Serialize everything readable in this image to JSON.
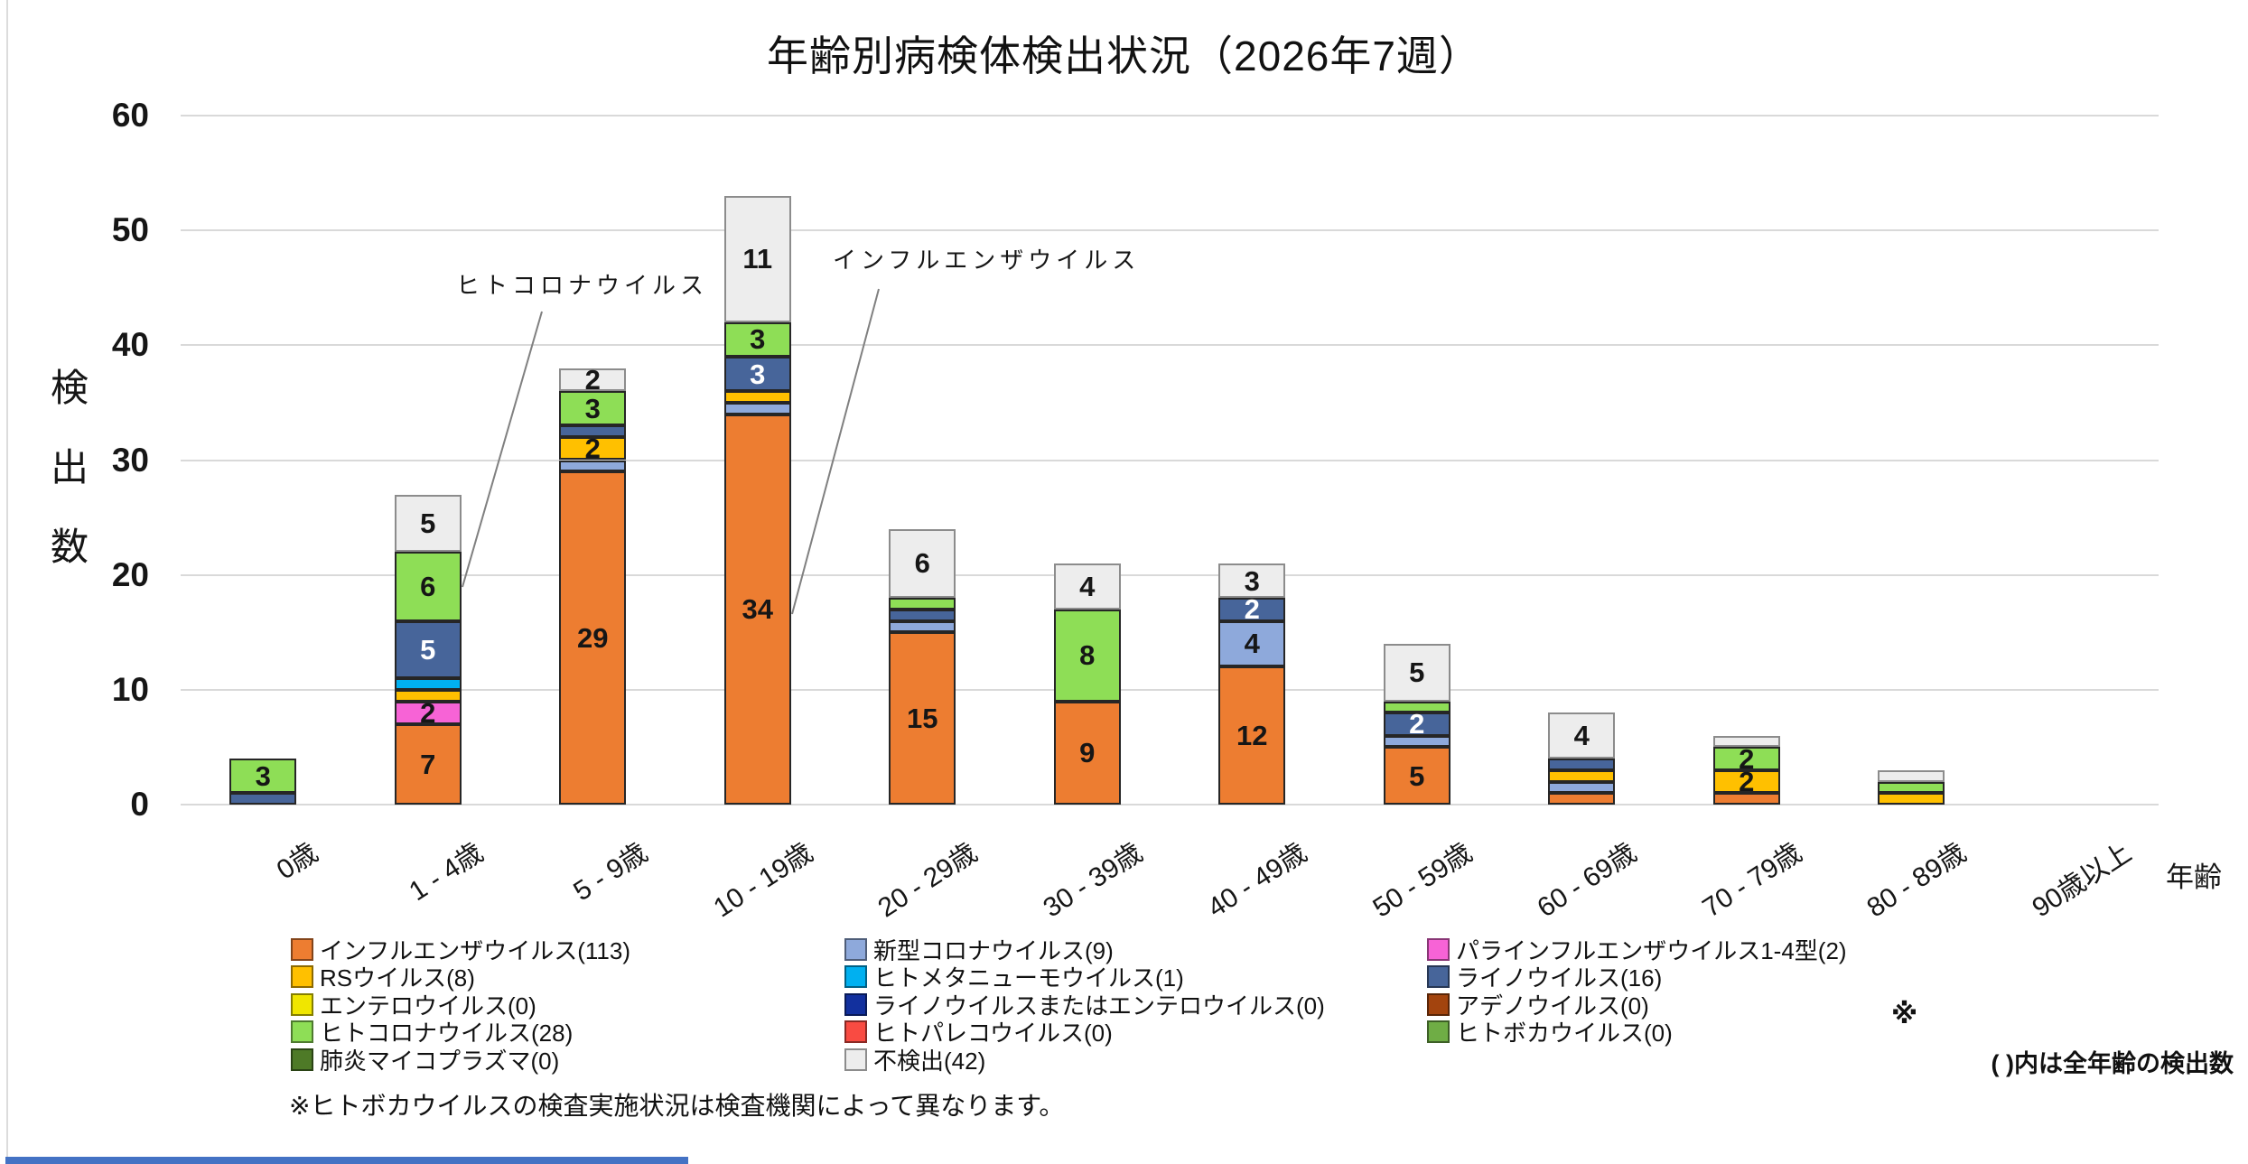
{
  "title": "年齢別病検体検出状況（2026年7週）",
  "chart_data": {
    "type": "bar",
    "stacked": true,
    "title": "年齢別病検体検出状況（2026年7週）",
    "ylabel": "検出数",
    "xlabel": "年齢",
    "ylim": [
      0,
      60
    ],
    "yticks": [
      0,
      10,
      20,
      30,
      40,
      50,
      60
    ],
    "grid": true,
    "grid_color": "#D9D9D9",
    "min_segment_label_value": 2,
    "categories": [
      "0歳",
      "1 - 4歳",
      "5 - 9歳",
      "10 - 19歳",
      "20 - 29歳",
      "30 - 39歳",
      "40 - 49歳",
      "50 - 59歳",
      "60 - 69歳",
      "70 - 79歳",
      "80 - 89歳",
      "90歳以上"
    ],
    "series": [
      {
        "name": "インフルエンザウイルス",
        "legend_label": "インフルエンザウイルス(113)",
        "total": 113,
        "color": "#ED7D31",
        "values": [
          0,
          7,
          29,
          34,
          15,
          9,
          12,
          5,
          1,
          1,
          0,
          0
        ]
      },
      {
        "name": "新型コロナウイルス",
        "legend_label": "新型コロナウイルス(9)",
        "total": 9,
        "color": "#8EA9DB",
        "values": [
          0,
          0,
          1,
          1,
          1,
          0,
          4,
          1,
          1,
          0,
          0,
          0
        ]
      },
      {
        "name": "パラインフルエンザウイルス1-4型",
        "legend_label": "パラインフルエンザウイルス1-4型(2)",
        "total": 2,
        "color": "#F763D6",
        "values": [
          0,
          2,
          0,
          0,
          0,
          0,
          0,
          0,
          0,
          0,
          0,
          0
        ]
      },
      {
        "name": "RSウイルス",
        "legend_label": "RSウイルス(8)",
        "total": 8,
        "color": "#FFC000",
        "values": [
          0,
          1,
          2,
          1,
          0,
          0,
          0,
          0,
          1,
          2,
          1,
          0
        ]
      },
      {
        "name": "ヒトメタニューモウイルス",
        "legend_label": "ヒトメタニューモウイルス(1)",
        "total": 1,
        "color": "#00B0F0",
        "values": [
          0,
          1,
          0,
          0,
          0,
          0,
          0,
          0,
          0,
          0,
          0,
          0
        ]
      },
      {
        "name": "ライノウイルス",
        "legend_label": "ライノウイルス(16)",
        "total": 16,
        "color": "#47659A",
        "text_color": "#FFFFFF",
        "values": [
          1,
          5,
          1,
          3,
          1,
          0,
          2,
          2,
          1,
          0,
          0,
          0
        ]
      },
      {
        "name": "エンテロウイルス",
        "legend_label": "エンテロウイルス(0)",
        "total": 0,
        "color": "#F0E600",
        "values": [
          0,
          0,
          0,
          0,
          0,
          0,
          0,
          0,
          0,
          0,
          0,
          0
        ]
      },
      {
        "name": "ライノウイルスまたはエンテロウイルス",
        "legend_label": "ライノウイルスまたはエンテロウイルス(0)",
        "total": 0,
        "color": "#12309E",
        "text_color": "#FFFFFF",
        "values": [
          0,
          0,
          0,
          0,
          0,
          0,
          0,
          0,
          0,
          0,
          0,
          0
        ]
      },
      {
        "name": "アデノウイルス",
        "legend_label": "アデノウイルス(0)",
        "total": 0,
        "color": "#A3440E",
        "values": [
          0,
          0,
          0,
          0,
          0,
          0,
          0,
          0,
          0,
          0,
          0,
          0
        ]
      },
      {
        "name": "ヒトコロナウイルス",
        "legend_label": "ヒトコロナウイルス(28)",
        "total": 28,
        "color": "#8EDE56",
        "values": [
          3,
          6,
          3,
          3,
          1,
          8,
          0,
          1,
          0,
          2,
          1,
          0
        ]
      },
      {
        "name": "ヒトパレコウイルス",
        "legend_label": "ヒトパレコウイルス(0)",
        "total": 0,
        "color": "#F94B42",
        "values": [
          0,
          0,
          0,
          0,
          0,
          0,
          0,
          0,
          0,
          0,
          0,
          0
        ]
      },
      {
        "name": "ヒトボカウイルス",
        "legend_label": "ヒトボカウイルス(0)",
        "total": 0,
        "color": "#6FAD45",
        "suffix_mark": "※",
        "values": [
          0,
          0,
          0,
          0,
          0,
          0,
          0,
          0,
          0,
          0,
          0,
          0
        ]
      },
      {
        "name": "肺炎マイコプラズマ",
        "legend_label": "肺炎マイコプラズマ(0)",
        "total": 0,
        "color": "#4E7A27",
        "values": [
          0,
          0,
          0,
          0,
          0,
          0,
          0,
          0,
          0,
          0,
          0,
          0
        ]
      },
      {
        "name": "不検出",
        "legend_label": "不検出(42)",
        "total": 42,
        "color": "#EDEDED",
        "border_color": "#8C8C8C",
        "values": [
          0,
          5,
          2,
          11,
          6,
          4,
          3,
          5,
          4,
          1,
          1,
          0
        ]
      }
    ],
    "legend": {
      "columns": [
        [
          0,
          3,
          6,
          9,
          12
        ],
        [
          1,
          4,
          7,
          10,
          13
        ],
        [
          2,
          5,
          8,
          11
        ]
      ],
      "note_mark": "※"
    },
    "annotations": [
      {
        "text": "ヒトコロナウイルス",
        "x": 505,
        "y": 296,
        "line": [
          600,
          345,
          512,
          650
        ]
      },
      {
        "text": "インフルエンザウイルス",
        "x": 922,
        "y": 268,
        "line": [
          973,
          320,
          877,
          680
        ]
      }
    ],
    "footnote": "※ヒトボカウイルスの検査実施状況は検査機関によって異なります。",
    "side_note": "( )内は全年齢の検出数"
  }
}
